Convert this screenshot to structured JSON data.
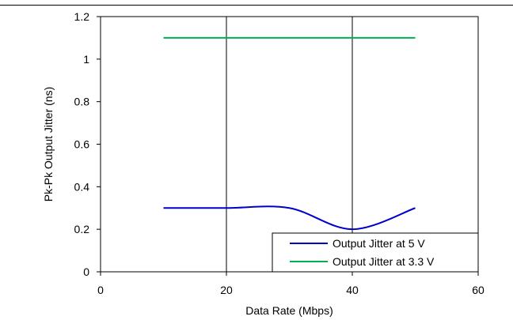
{
  "chart_data": {
    "type": "line",
    "title": "",
    "xlabel": "Data Rate (Mbps)",
    "ylabel": "Pk-Pk Output Jitter (ns)",
    "xlim": [
      0,
      60
    ],
    "ylim": [
      0,
      1.2
    ],
    "x_ticks": [
      0,
      20,
      40,
      60
    ],
    "x_tick_labels": [
      "0",
      "20",
      "40",
      "60"
    ],
    "y_ticks": [
      0,
      0.2,
      0.4,
      0.6,
      0.8,
      1.0,
      1.2
    ],
    "y_tick_labels": [
      "0",
      "0.2",
      "0.4",
      "0.6",
      "0.8",
      "1",
      "1.2"
    ],
    "grid": "vertical lines at major x ticks",
    "legend_position": "bottom-right",
    "series": [
      {
        "name": "Output Jitter at 5 V",
        "color": "#0000cc",
        "x": [
          10,
          20,
          30,
          40,
          50
        ],
        "y": [
          0.3,
          0.3,
          0.3,
          0.2,
          0.3
        ]
      },
      {
        "name": "Output Jitter at 3.3 V",
        "color": "#00b050",
        "x": [
          10,
          20,
          30,
          40,
          50
        ],
        "y": [
          1.1,
          1.1,
          1.1,
          1.1,
          1.1
        ]
      }
    ]
  }
}
